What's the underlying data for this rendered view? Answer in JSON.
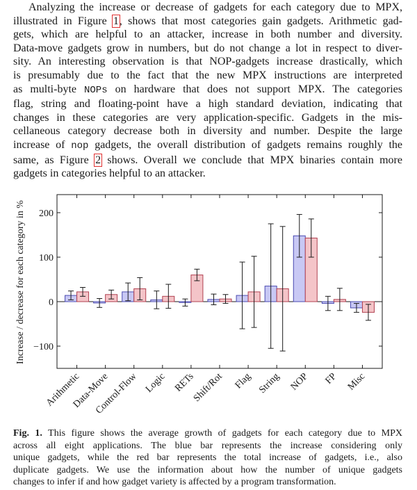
{
  "paragraph": {
    "lines": [
      "Analyzing the increase or decrease of gadgets for each category due to MPX,",
      "illustrated in Figure ",
      "gets, which are helpful to an attacker, increase in both number and diversity.",
      "Data-move gadgets grow in numbers, but do not change a lot in respect to diver-",
      "sity. An interesting observation is that NOP-gadgets increase drastically, which",
      "is presumably due to the fact that the new MPX instructions are interpreted",
      "as multi-byte ",
      "flag, string and floating-point have a high standard deviation, indicating that",
      "changes in these categories are very application-specific. Gadgets in the mis-",
      "cellaneous category decrease both in diversity and number. Despite the large",
      "increase of ",
      "same, as Figure ",
      "gadgets in categories helpful to an attacker."
    ],
    "line2_ref": "1",
    "line2_tail": ", shows that most categories gain gadgets. Arithmetic gad-",
    "line7_code": "NOPs",
    "line7_tail": " on hardware that does not support MPX. The categories",
    "line11_code": "nop",
    "line11_tail": " gadgets, the overall distribution of gadgets remains roughly the",
    "line12_ref": "2",
    "line12_tail": " shows. Overall we conclude that MPX binaries contain more"
  },
  "chart_data": {
    "type": "bar",
    "ylabel": "Increase / decrease for each category in %",
    "ylim": [
      -140,
      215
    ],
    "yticks": [
      -100,
      0,
      100,
      200
    ],
    "ytick_labels": [
      "−100",
      "0",
      "100",
      "200"
    ],
    "categories": [
      "Arithmetic",
      "Data-Move",
      "Control-Flow",
      "Logic",
      "RETs",
      "Shift/Rot",
      "Flag",
      "String",
      "NOP",
      "FP",
      "Misc"
    ],
    "series": [
      {
        "color": "#c8c8f4",
        "edge": "#4a4ab0",
        "values": [
          14,
          -3,
          22,
          4,
          -2,
          5,
          14,
          35,
          148,
          -4,
          -14
        ],
        "err": [
          10,
          10,
          20,
          20,
          8,
          12,
          75,
          140,
          48,
          16,
          10
        ]
      },
      {
        "color": "#f4c4c8",
        "edge": "#b04050",
        "values": [
          22,
          16,
          29,
          12,
          60,
          6,
          22,
          29,
          143,
          5,
          -24
        ],
        "err": [
          10,
          10,
          25,
          27,
          13,
          10,
          80,
          140,
          43,
          25,
          18
        ]
      }
    ],
    "grid": false
  },
  "caption": {
    "label": "Fig. 1.",
    "lines": [
      " This figure shows the average growth of gadgets for each category due to MPX",
      "across all eight applications. The blue bar represents the increase considering only",
      "unique gadgets, while the red bar represents the total increase of gadgets, i.e., also",
      "duplicate gadgets. We use the information about how the number of unique gadgets",
      "changes to infer if and how gadget variety is affected by a program transformation."
    ]
  }
}
